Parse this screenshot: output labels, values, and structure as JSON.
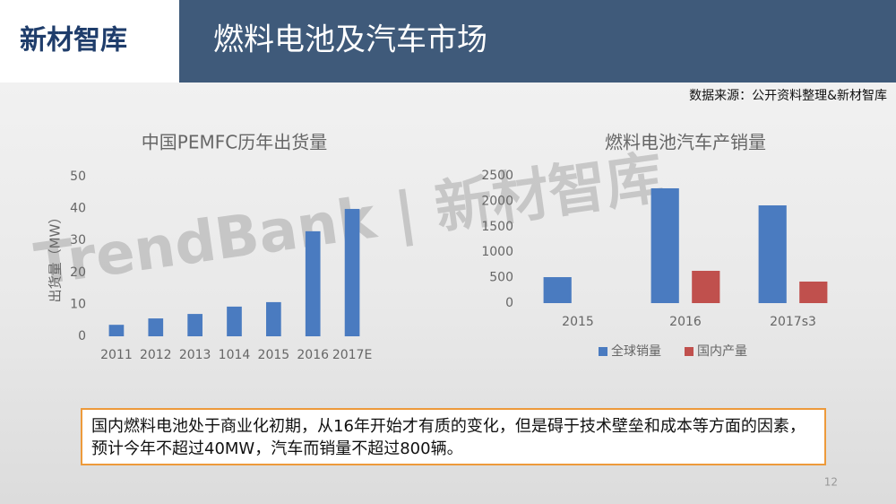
{
  "logo": "新材智库",
  "header": {
    "title": "燃料电池及汽车市场"
  },
  "source": "数据来源：公开资料整理&新材智库",
  "watermark": "TrendBank | 新材智库",
  "callout": "国内燃料电池处于商业化初期，从16年开始才有质的变化，但是碍于技术壁垒和成本等方面的因素，预计今年不超过40MW，汽车而销量不超过800辆。",
  "page_number": "12",
  "chart_data": [
    {
      "type": "bar",
      "title": "中国PEMFC历年出货量",
      "y_label": "出货量（MW）",
      "categories": [
        "2011",
        "2012",
        "2013",
        "1014",
        "2015",
        "2016",
        "2017E"
      ],
      "values": [
        3.6,
        5.6,
        7,
        9.3,
        10.7,
        32.9,
        39.9
      ],
      "color": "#4a7bc0",
      "ylim": [
        0,
        50
      ],
      "yticks": [
        0,
        10,
        20,
        30,
        40,
        50
      ],
      "grid": false
    },
    {
      "type": "bar",
      "title": "燃料电池汽车产销量",
      "categories": [
        "2015",
        "2016",
        "2017s3"
      ],
      "series": [
        {
          "name": "全球销量",
          "color": "#4a7bc0",
          "values": [
            510,
            2254,
            1919
          ]
        },
        {
          "name": "国内产量",
          "color": "#c0504d",
          "values": [
            null,
            634,
            423
          ]
        }
      ],
      "ylim": [
        0,
        2500
      ],
      "yticks": [
        0,
        500,
        1000,
        1500,
        2000,
        2500
      ],
      "grid": false,
      "legend": "bottom"
    }
  ]
}
